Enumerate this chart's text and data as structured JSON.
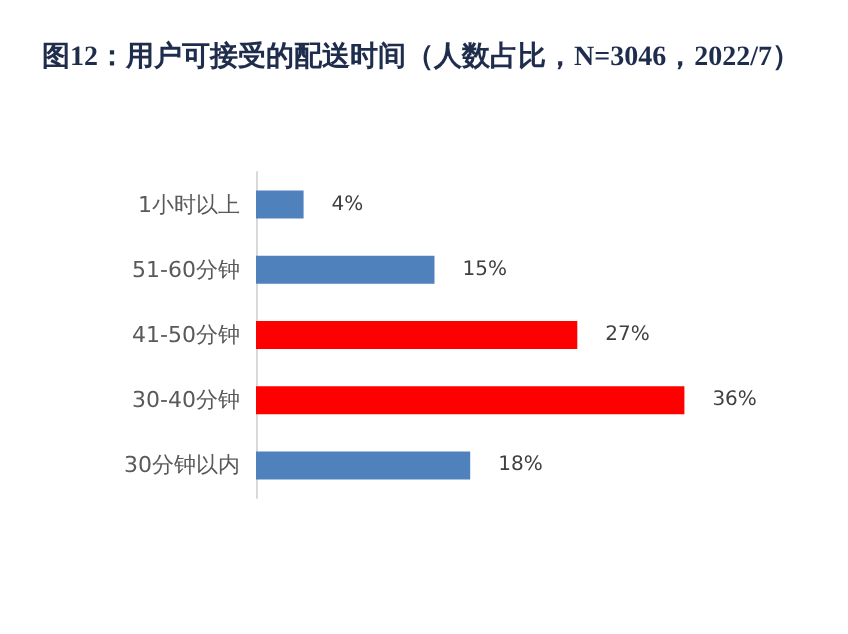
{
  "chart_data": {
    "type": "bar",
    "orientation": "horizontal",
    "title": "图12：用户可接受的配送时间（人数占比，N=3046，2022/7）",
    "categories": [
      "1小时以上",
      "51-60分钟",
      "41-50分钟",
      "30-40分钟",
      "30分钟以内"
    ],
    "values": [
      4,
      15,
      27,
      36,
      18
    ],
    "colors": [
      "#4f81bd",
      "#4f81bd",
      "#ff0000",
      "#ff0000",
      "#4f81bd"
    ],
    "value_labels": [
      "4%",
      "15%",
      "27%",
      "36%",
      "18%"
    ]
  }
}
